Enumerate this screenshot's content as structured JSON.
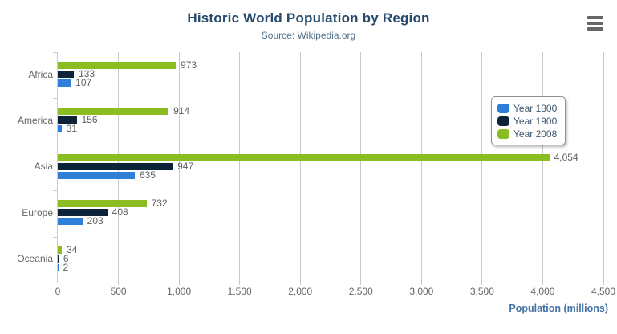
{
  "header": {
    "title": "Historic World Population by Region",
    "subtitle": "Source: Wikipedia.org"
  },
  "chart_data": {
    "type": "bar",
    "title": "Historic World Population by Region",
    "subtitle": "Source: Wikipedia.org",
    "categories": [
      "Africa",
      "America",
      "Asia",
      "Europe",
      "Oceania"
    ],
    "series": [
      {
        "name": "Year 1800",
        "color": "#2f7ed8",
        "values": [
          107,
          31,
          635,
          203,
          2
        ]
      },
      {
        "name": "Year 1900",
        "color": "#0d233a",
        "values": [
          133,
          156,
          947,
          408,
          6
        ]
      },
      {
        "name": "Year 2008",
        "color": "#8bbc21",
        "values": [
          973,
          914,
          4054,
          732,
          34
        ]
      }
    ],
    "bar_display_order_top_to_bottom": [
      "Year 2008",
      "Year 1900",
      "Year 1800"
    ],
    "xlabel": "Population (millions)",
    "ylabel": "",
    "xlim": [
      0,
      4500
    ],
    "x_ticks": [
      0,
      500,
      1000,
      1500,
      2000,
      2500,
      3000,
      3500,
      4000,
      4500
    ],
    "grid": true,
    "data_labels": true,
    "legend": {
      "position": "floating-right-top",
      "entries": [
        "Year 1800",
        "Year 1900",
        "Year 2008"
      ]
    }
  },
  "colors": {
    "title": "#274b6d",
    "subtitle": "#55708d",
    "axis_title": "#4572a7",
    "data_label": "#606060",
    "category_label": "#666666",
    "tick_label": "#666666",
    "gridline": "#c9c9c9",
    "axis_line": "#c0d0e0",
    "legend_border": "#909090",
    "legend_text": "#3e576f",
    "menu_icon": "#666666"
  }
}
